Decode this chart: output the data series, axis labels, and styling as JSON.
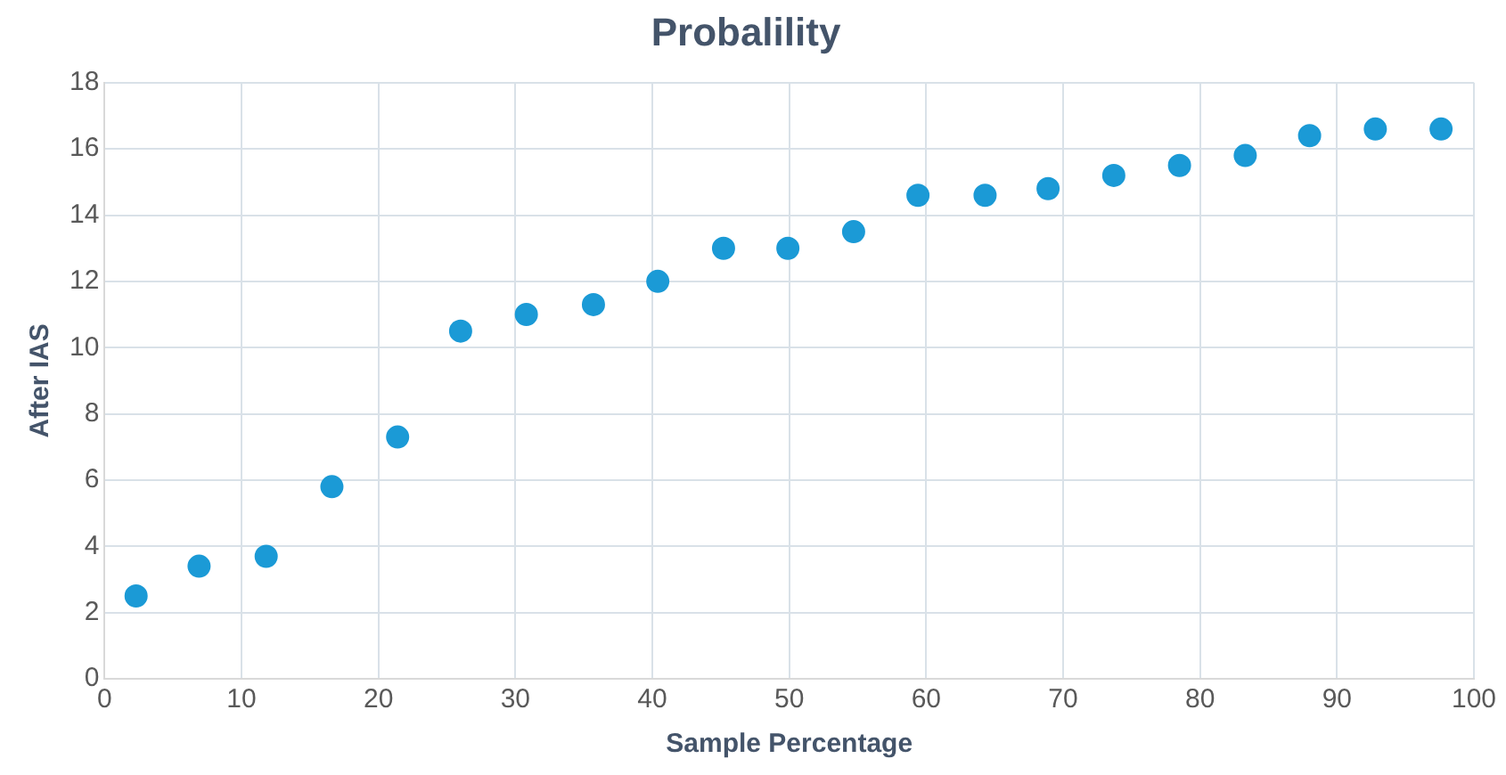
{
  "chart_data": {
    "type": "scatter",
    "title": "Probalility",
    "xlabel": "Sample Percentage",
    "ylabel": "After IAS",
    "x": [
      2.3,
      6.9,
      11.8,
      16.6,
      21.4,
      26.0,
      30.8,
      35.7,
      40.4,
      45.2,
      49.9,
      54.7,
      59.4,
      64.3,
      68.9,
      73.7,
      78.5,
      83.3,
      88.0,
      92.8,
      97.6
    ],
    "series": [
      {
        "color": "#1b9ad6",
        "values": [
          2.5,
          3.4,
          3.7,
          5.8,
          7.3,
          10.5,
          11.0,
          11.3,
          12.0,
          13.0,
          13.0,
          13.5,
          14.6,
          14.6,
          14.8,
          15.2,
          15.5,
          15.8,
          16.4,
          16.6,
          16.6
        ]
      }
    ],
    "xlim": [
      0,
      100
    ],
    "xticks": [
      0,
      10,
      20,
      30,
      40,
      50,
      60,
      70,
      80,
      90,
      100
    ],
    "ylim": [
      0,
      18
    ],
    "yticks": [
      0,
      2,
      4,
      6,
      8,
      10,
      12,
      14,
      16,
      18
    ],
    "grid": true,
    "legend": false,
    "marker": "circle"
  }
}
